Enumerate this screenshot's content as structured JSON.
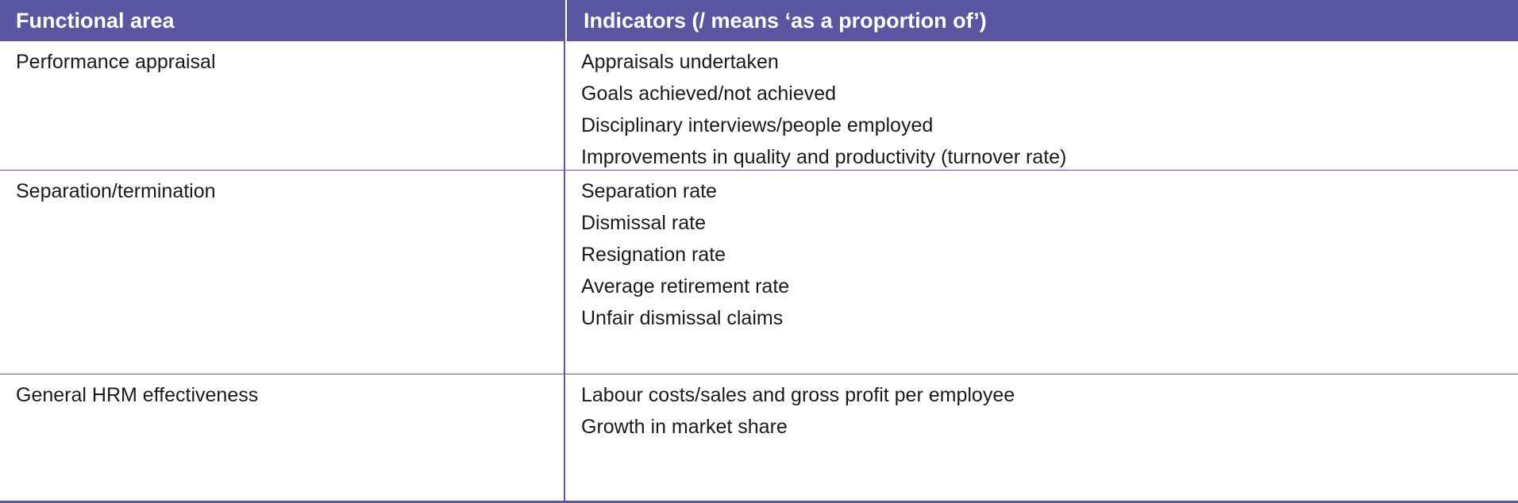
{
  "table": {
    "header": {
      "functional_area": "Functional area",
      "indicators": "Indicators (/ means ‘as a proportion of’)"
    },
    "rows": [
      {
        "area": "Performance appraisal",
        "indicators": [
          "Appraisals undertaken",
          "Goals achieved/not achieved",
          "Disciplinary interviews/people employed",
          "Improvements in quality and productivity (turnover rate)"
        ]
      },
      {
        "area": "Separation/termination",
        "indicators": [
          "Separation rate",
          "Dismissal rate",
          "Resignation rate",
          "Average retirement rate",
          "Unfair dismissal claims"
        ]
      },
      {
        "area": "General HRM effectiveness",
        "indicators": [
          "Labour costs/sales and gross profit per employee",
          "Growth in market share"
        ]
      }
    ]
  },
  "colors": {
    "header_bg": "#5a56a2",
    "header_text": "#ffffff",
    "rule": "#5a56a2"
  }
}
